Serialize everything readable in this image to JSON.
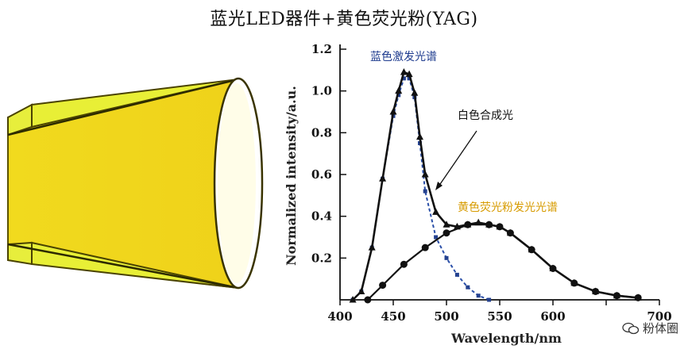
{
  "title": "蓝光LED器件+黄色荧光粉(YAG)",
  "watermark": "粉体圈",
  "colors": {
    "blue_label": "#1f3c8f",
    "yellow_label": "#d79b00",
    "led_yellow": "#f2df22",
    "led_yellow_light": "#e9ee3a"
  },
  "chart_data": {
    "type": "line",
    "title": "",
    "xlabel": "Wavelength/nm",
    "ylabel": "Normalized intensity/a.u.",
    "xlim": [
      400,
      700
    ],
    "ylim": [
      0,
      1.2
    ],
    "x_ticks": [
      400,
      450,
      500,
      550,
      600,
      650,
      700
    ],
    "y_ticks": [
      0.2,
      0.4,
      0.6,
      0.8,
      1.0,
      1.2
    ],
    "x_tick_labels": [
      "400",
      "450",
      "500",
      "550",
      "600",
      "",
      "700"
    ],
    "y_tick_labels": [
      "0.2",
      "0.4",
      "0.6",
      "0.8",
      "1.0",
      "1.2"
    ],
    "series": [
      {
        "name": "蓝色激发光谱",
        "style": "dashed-blue",
        "x": [
          412,
          420,
          430,
          440,
          450,
          455,
          460,
          465,
          470,
          475,
          480,
          490,
          500,
          510,
          520,
          530,
          540
        ],
        "y": [
          0.0,
          0.04,
          0.25,
          0.58,
          0.88,
          0.98,
          1.06,
          1.06,
          0.97,
          0.75,
          0.52,
          0.3,
          0.2,
          0.12,
          0.06,
          0.02,
          0.0
        ]
      },
      {
        "name": "黄色荧光粉发光光谱",
        "style": "solid-dots",
        "x": [
          426,
          440,
          460,
          480,
          500,
          520,
          540,
          550,
          560,
          580,
          600,
          620,
          640,
          660,
          680
        ],
        "y": [
          0.0,
          0.07,
          0.17,
          0.25,
          0.32,
          0.36,
          0.36,
          0.35,
          0.32,
          0.24,
          0.15,
          0.08,
          0.04,
          0.02,
          0.01
        ]
      },
      {
        "name": "白色合成光",
        "style": "solid-triangles",
        "x": [
          412,
          420,
          430,
          440,
          450,
          455,
          460,
          465,
          470,
          475,
          480,
          490,
          500,
          510,
          520,
          530,
          540,
          550,
          560,
          580,
          600,
          620,
          640,
          660,
          680
        ],
        "y": [
          0.0,
          0.04,
          0.25,
          0.58,
          0.9,
          1.0,
          1.09,
          1.08,
          0.99,
          0.78,
          0.6,
          0.42,
          0.36,
          0.35,
          0.36,
          0.37,
          0.36,
          0.35,
          0.32,
          0.24,
          0.15,
          0.08,
          0.04,
          0.02,
          0.01
        ]
      }
    ],
    "annotations": [
      {
        "text": "蓝色激发光谱",
        "color": "blue"
      },
      {
        "text": "白色合成光",
        "color": "black"
      },
      {
        "text": "黄色荧光粉发光光谱",
        "color": "yellow"
      }
    ]
  }
}
